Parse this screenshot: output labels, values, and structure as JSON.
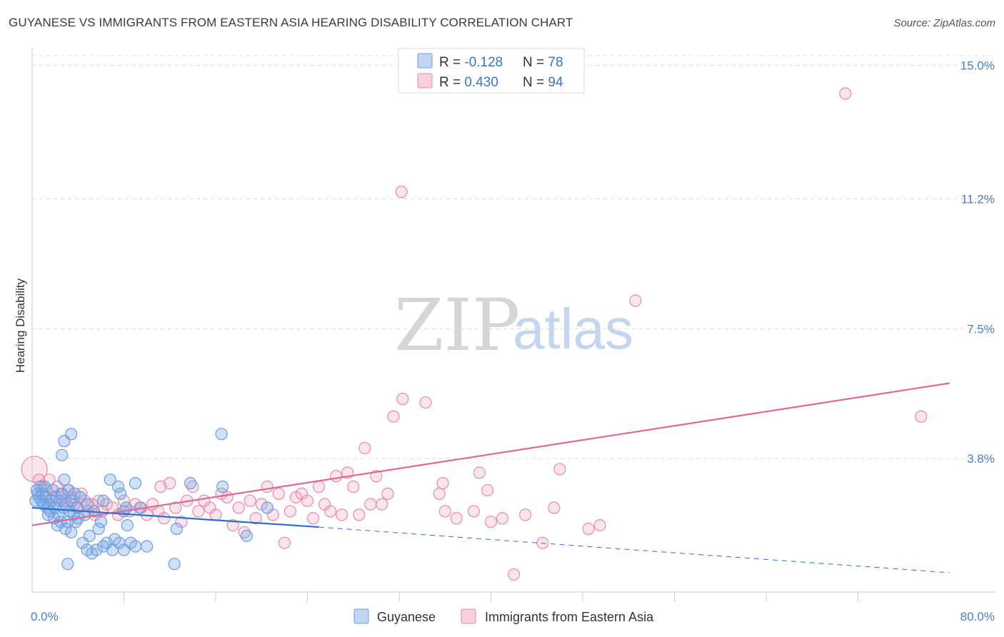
{
  "header": {
    "title": "GUYANESE VS IMMIGRANTS FROM EASTERN ASIA HEARING DISABILITY CORRELATION CHART",
    "source": "Source: ZipAtlas.com"
  },
  "watermark": {
    "zip": "ZIP",
    "atlas": "atlas"
  },
  "colors": {
    "blue": "#6d9de0",
    "blue_fill": "rgba(120,165,230,0.35)",
    "blue_line": "#2f6fcf",
    "pink": "#e88aaa",
    "pink_fill": "rgba(240,150,180,0.25)",
    "pink_line": "#e06a95",
    "grid": "#dddddd",
    "tick_text": "#4a7cc7"
  },
  "legend": {
    "series": [
      {
        "r_label": "R = ",
        "r_value": "-0.128",
        "n_label": "N = ",
        "n_value": "78"
      },
      {
        "r_label": "R = ",
        "r_value": "0.430",
        "n_label": "N = ",
        "n_value": "94"
      }
    ]
  },
  "chart_data": {
    "type": "scatter",
    "title": "GUYANESE VS IMMIGRANTS FROM EASTERN ASIA HEARING DISABILITY CORRELATION CHART",
    "xlabel": "",
    "ylabel": "Hearing Disability",
    "xlim": [
      0,
      80
    ],
    "ylim": [
      0,
      15.4
    ],
    "x_tick_labels": [
      "0.0%",
      "80.0%"
    ],
    "x_minor_ticks": [
      8,
      16,
      24,
      32,
      40,
      48,
      56,
      64,
      72
    ],
    "y_ticks": [
      3.8,
      7.5,
      11.2,
      15.0
    ],
    "y_tick_labels": [
      "3.8%",
      "7.5%",
      "11.2%",
      "15.0%"
    ],
    "grid": true,
    "legend_position": "top-center",
    "series": [
      {
        "name": "Guyanese",
        "color": "#6d9de0",
        "points": [
          [
            0.3,
            2.6
          ],
          [
            0.4,
            2.9
          ],
          [
            0.5,
            2.8
          ],
          [
            0.6,
            2.7
          ],
          [
            0.7,
            3.0
          ],
          [
            0.8,
            2.6
          ],
          [
            0.9,
            2.8
          ],
          [
            1.0,
            2.5
          ],
          [
            1.1,
            3.0
          ],
          [
            1.2,
            2.7
          ],
          [
            1.3,
            2.4
          ],
          [
            1.4,
            2.2
          ],
          [
            1.5,
            2.5
          ],
          [
            1.6,
            2.3
          ],
          [
            1.7,
            2.6
          ],
          [
            1.8,
            2.9
          ],
          [
            1.9,
            2.1
          ],
          [
            2.0,
            2.4
          ],
          [
            2.1,
            2.7
          ],
          [
            2.2,
            1.9
          ],
          [
            2.3,
            2.2
          ],
          [
            2.4,
            2.6
          ],
          [
            2.5,
            2.0
          ],
          [
            2.6,
            2.8
          ],
          [
            2.7,
            2.4
          ],
          [
            2.8,
            3.2
          ],
          [
            2.9,
            1.8
          ],
          [
            3.0,
            2.5
          ],
          [
            3.1,
            2.0
          ],
          [
            3.2,
            2.9
          ],
          [
            3.3,
            2.3
          ],
          [
            3.4,
            1.7
          ],
          [
            3.5,
            2.6
          ],
          [
            3.6,
            2.2
          ],
          [
            3.7,
            2.8
          ],
          [
            3.8,
            2.0
          ],
          [
            3.9,
            2.4
          ],
          [
            4.0,
            2.1
          ],
          [
            4.2,
            2.7
          ],
          [
            4.4,
            1.4
          ],
          [
            4.6,
            2.2
          ],
          [
            4.8,
            2.5
          ],
          [
            5.0,
            1.6
          ],
          [
            5.2,
            1.1
          ],
          [
            5.4,
            2.3
          ],
          [
            5.6,
            1.2
          ],
          [
            5.8,
            1.8
          ],
          [
            6.0,
            2.0
          ],
          [
            6.2,
            2.6
          ],
          [
            6.5,
            1.4
          ],
          [
            6.8,
            3.2
          ],
          [
            7.0,
            1.2
          ],
          [
            7.2,
            1.5
          ],
          [
            7.5,
            3.0
          ],
          [
            7.7,
            2.8
          ],
          [
            8.0,
            2.3
          ],
          [
            8.3,
            1.9
          ],
          [
            8.6,
            1.4
          ],
          [
            9.0,
            3.1
          ],
          [
            9.4,
            2.4
          ],
          [
            2.8,
            4.3
          ],
          [
            3.4,
            4.5
          ],
          [
            2.6,
            3.9
          ],
          [
            6.2,
            1.3
          ],
          [
            7.6,
            1.4
          ],
          [
            8.0,
            1.2
          ],
          [
            8.2,
            2.4
          ],
          [
            9.0,
            1.3
          ],
          [
            3.1,
            0.8
          ],
          [
            10.0,
            1.3
          ],
          [
            12.4,
            0.8
          ],
          [
            12.6,
            1.8
          ],
          [
            13.8,
            3.1
          ],
          [
            16.5,
            4.5
          ],
          [
            16.6,
            3.0
          ],
          [
            18.7,
            1.6
          ],
          [
            20.5,
            2.4
          ],
          [
            4.8,
            1.2
          ]
        ],
        "trend_solid": [
          [
            0,
            2.4
          ],
          [
            25,
            1.85
          ]
        ],
        "trend_dashed": [
          [
            25,
            1.85
          ],
          [
            80,
            0.55
          ]
        ]
      },
      {
        "name": "Immigrants from Eastern Asia",
        "color": "#e88aaa",
        "points": [
          [
            0.2,
            3.5
          ],
          [
            0.6,
            3.2
          ],
          [
            0.9,
            3.0
          ],
          [
            1.2,
            2.9
          ],
          [
            1.5,
            3.2
          ],
          [
            1.8,
            2.7
          ],
          [
            2.2,
            3.0
          ],
          [
            2.5,
            2.8
          ],
          [
            2.8,
            2.6
          ],
          [
            3.1,
            2.9
          ],
          [
            3.4,
            2.7
          ],
          [
            3.7,
            2.5
          ],
          [
            4.0,
            2.4
          ],
          [
            4.3,
            2.8
          ],
          [
            4.6,
            2.6
          ],
          [
            4.9,
            2.3
          ],
          [
            5.2,
            2.5
          ],
          [
            5.5,
            2.2
          ],
          [
            5.8,
            2.6
          ],
          [
            6.1,
            2.3
          ],
          [
            6.5,
            2.5
          ],
          [
            7.0,
            2.4
          ],
          [
            7.5,
            2.2
          ],
          [
            8.0,
            2.6
          ],
          [
            8.5,
            2.3
          ],
          [
            9.0,
            2.5
          ],
          [
            9.5,
            2.4
          ],
          [
            10.0,
            2.2
          ],
          [
            10.5,
            2.5
          ],
          [
            11.0,
            2.3
          ],
          [
            11.2,
            3.0
          ],
          [
            11.5,
            2.1
          ],
          [
            12.0,
            3.1
          ],
          [
            12.5,
            2.4
          ],
          [
            13.0,
            2.0
          ],
          [
            13.5,
            2.6
          ],
          [
            14.0,
            3.0
          ],
          [
            14.5,
            2.3
          ],
          [
            15.0,
            2.6
          ],
          [
            15.5,
            2.4
          ],
          [
            16.0,
            2.2
          ],
          [
            16.5,
            2.8
          ],
          [
            17.0,
            2.7
          ],
          [
            17.5,
            1.9
          ],
          [
            18.0,
            2.4
          ],
          [
            18.5,
            1.7
          ],
          [
            19.0,
            2.6
          ],
          [
            19.5,
            2.1
          ],
          [
            20.0,
            2.5
          ],
          [
            20.5,
            3.0
          ],
          [
            21.0,
            2.2
          ],
          [
            21.5,
            2.8
          ],
          [
            22.0,
            1.4
          ],
          [
            22.5,
            2.3
          ],
          [
            23.0,
            2.7
          ],
          [
            23.5,
            2.8
          ],
          [
            24.0,
            2.6
          ],
          [
            24.5,
            2.1
          ],
          [
            25.0,
            3.0
          ],
          [
            25.5,
            2.5
          ],
          [
            26.0,
            2.3
          ],
          [
            26.5,
            3.3
          ],
          [
            27.0,
            2.2
          ],
          [
            27.5,
            3.4
          ],
          [
            28.0,
            3.0
          ],
          [
            28.5,
            2.2
          ],
          [
            29.0,
            4.1
          ],
          [
            29.5,
            2.5
          ],
          [
            30.0,
            3.3
          ],
          [
            30.5,
            2.5
          ],
          [
            31.0,
            2.8
          ],
          [
            31.5,
            5.0
          ],
          [
            32.3,
            5.5
          ],
          [
            34.3,
            5.4
          ],
          [
            35.5,
            2.8
          ],
          [
            35.8,
            3.1
          ],
          [
            36.0,
            2.3
          ],
          [
            37.0,
            2.1
          ],
          [
            38.5,
            2.3
          ],
          [
            39.0,
            3.4
          ],
          [
            39.7,
            2.9
          ],
          [
            40.0,
            2.0
          ],
          [
            41.0,
            2.1
          ],
          [
            42.0,
            0.5
          ],
          [
            43.0,
            2.2
          ],
          [
            44.5,
            1.4
          ],
          [
            45.5,
            2.4
          ],
          [
            46.0,
            3.5
          ],
          [
            48.5,
            1.8
          ],
          [
            49.5,
            1.9
          ],
          [
            52.6,
            8.3
          ],
          [
            32.2,
            11.4
          ],
          [
            70.9,
            14.2
          ],
          [
            77.5,
            5.0
          ]
        ],
        "trend": [
          [
            0,
            1.9
          ],
          [
            80,
            5.95
          ]
        ]
      }
    ]
  }
}
